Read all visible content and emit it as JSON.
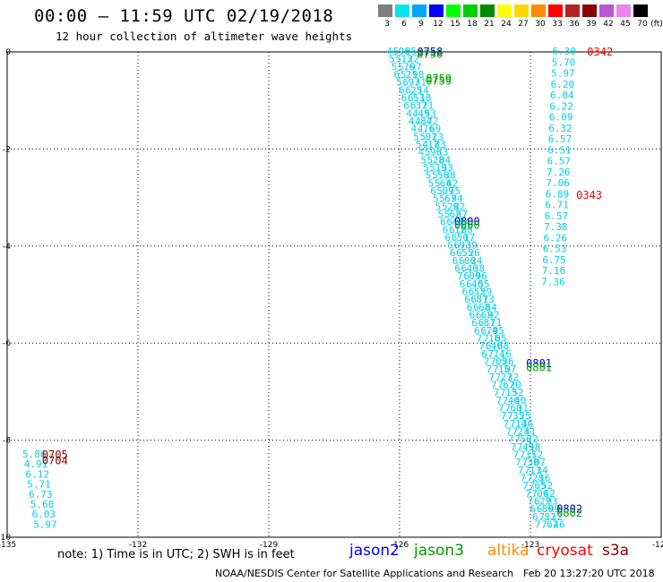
{
  "header": {
    "title": "00:00 – 11:59 UTC 02/19/2018",
    "subtitle": "12 hour collection of altimeter wave heights"
  },
  "color_scale": {
    "unit_label": "(ft)",
    "swatches": [
      {
        "label": "3",
        "color": "#7f7f7f"
      },
      {
        "label": "6",
        "color": "#00e5ee"
      },
      {
        "label": "9",
        "color": "#00a5ff"
      },
      {
        "label": "12",
        "color": "#0000ff"
      },
      {
        "label": "15",
        "color": "#00ff00"
      },
      {
        "label": "18",
        "color": "#00cd00"
      },
      {
        "label": "21",
        "color": "#008b00"
      },
      {
        "label": "24",
        "color": "#ffff00"
      },
      {
        "label": "27",
        "color": "#ffd700"
      },
      {
        "label": "30",
        "color": "#ff8c00"
      },
      {
        "label": "33",
        "color": "#ff0000"
      },
      {
        "label": "36",
        "color": "#b22222"
      },
      {
        "label": "39",
        "color": "#8b0000"
      },
      {
        "label": "42",
        "color": "#ba55d3"
      },
      {
        "label": "45",
        "color": "#ee82ee"
      },
      {
        "label": "70",
        "color": "#000000"
      }
    ]
  },
  "chart_data": {
    "type": "scatter",
    "xlim": [
      -135,
      -120
    ],
    "ylim": [
      -10,
      0
    ],
    "x_ticks": [
      "-135",
      "-132",
      "-129",
      "-126",
      "-123",
      "-120"
    ],
    "y_ticks": [
      "0",
      "-2",
      "-4",
      "-6",
      "-8",
      "-10"
    ],
    "grid": true,
    "swh_color": "#00cfe8",
    "time_labels": [
      {
        "text": "0758",
        "x": -125.6,
        "y": 0.0,
        "color": "#0000cc"
      },
      {
        "text": "0758",
        "x": -125.6,
        "y": -0.05,
        "color": "#00a000"
      },
      {
        "text": "0759",
        "x": -125.4,
        "y": -0.55,
        "color": "#00a000"
      },
      {
        "text": "0759",
        "x": -125.4,
        "y": -0.6,
        "color": "#00a000"
      },
      {
        "text": "0800",
        "x": -124.75,
        "y": -3.5,
        "color": "#0000cc"
      },
      {
        "text": "0800",
        "x": -124.75,
        "y": -3.57,
        "color": "#00a000"
      },
      {
        "text": "0801",
        "x": -123.1,
        "y": -6.42,
        "color": "#0000cc"
      },
      {
        "text": "0801",
        "x": -123.1,
        "y": -6.5,
        "color": "#00a000"
      },
      {
        "text": "0802",
        "x": -122.4,
        "y": -9.42,
        "color": "#0000cc"
      },
      {
        "text": "0802",
        "x": -122.4,
        "y": -9.5,
        "color": "#00a000"
      },
      {
        "text": "0342",
        "x": -121.7,
        "y": 0.0,
        "color": "#ff0000"
      },
      {
        "text": "0343",
        "x": -121.95,
        "y": -2.95,
        "color": "#ff0000"
      },
      {
        "text": "0705",
        "x": -134.2,
        "y": -8.3,
        "color": "#8b0000"
      },
      {
        "text": "0704",
        "x": -134.2,
        "y": -8.42,
        "color": "#8b0000"
      }
    ],
    "series": [
      {
        "satellite": "cryosat",
        "x_start": -122.5,
        "y_start": 0.0,
        "x_end": -122.75,
        "y_end": -4.75,
        "values": [
          "6.30",
          "5.70",
          "5.97",
          "6.20",
          "6.04",
          "6.22",
          "6.09",
          "6.32",
          "6.57",
          "6.51",
          "6.57",
          "7.26",
          "7.06",
          "6.89",
          "6.71",
          "6.57",
          "7.38",
          "6.26",
          "6.53",
          "6.75",
          "7.16",
          "7.36"
        ]
      },
      {
        "satellite": "jason2",
        "x_start": -126.3,
        "y_start": 0.0,
        "x_end": -122.9,
        "y_end": -9.75,
        "values": [
          "4.96",
          "5.13",
          "5.76",
          "6.21",
          "5.97",
          "6.25",
          "6.53",
          "6.37",
          "4.49",
          "4.84",
          "4.76",
          "5.01",
          "5.17",
          "4.96",
          "5.28",
          "5.19",
          "5.56",
          "5.64",
          "6.09",
          "5.67",
          "5.29",
          "5.62",
          "6.44",
          "6.12",
          "6.50",
          "5.93",
          "6.55",
          "6.06",
          "6.46",
          "7.09",
          "6.40",
          "6.52",
          "6.81",
          "6.68",
          "6.68",
          "6.81",
          "6.74",
          "7.16",
          "7.40",
          "6.74",
          "7.05",
          "7.15",
          "7.27",
          "7.67",
          "7.13",
          "7.46",
          "7.60",
          "7.35",
          "7.14",
          "7.23",
          "7.56",
          "7.49",
          "7.31",
          "7.30",
          "7.11",
          "7.28",
          "7.65",
          "7.06",
          "7.22",
          "6.80",
          "6.82",
          "7.62"
        ]
      },
      {
        "satellite": "jason3",
        "x_start": -126.15,
        "y_start": 0.0,
        "x_end": -122.75,
        "y_end": -9.75,
        "values": [
          "5.05",
          "5.22",
          "5.97",
          "5.98",
          "6.31",
          "6.14",
          "6.18",
          "6.21",
          "4.53",
          "4.72",
          "4.69",
          "5.23",
          "4.83",
          "5.33",
          "5.04",
          "5.33",
          "5.38",
          "5.62",
          "5.75",
          "5.94",
          "5.82",
          "5.67",
          "6.34",
          "6.00",
          "6.17",
          "6.39",
          "6.26",
          "6.24",
          "6.38",
          "6.96",
          "6.55",
          "6.59",
          "6.73",
          "6.64",
          "6.92",
          "6.71",
          "6.95",
          "7.05",
          "6.68",
          "7.16",
          "7.26",
          "7.07",
          "7.32",
          "7.20",
          "7.52",
          "7.40",
          "7.11",
          "7.25",
          "7.36",
          "7.41",
          "7.22",
          "7.18",
          "7.52",
          "7.07",
          "7.34",
          "7.16",
          "7.52",
          "7.42",
          "6.93",
          "6.99",
          "7.12",
          "7.46"
        ]
      },
      {
        "satellite": "sw",
        "x_start": -134.65,
        "y_start": -8.3,
        "x_end": -134.4,
        "y_end": -9.75,
        "values": [
          "5.86",
          "4.91",
          "6.12",
          "5.71",
          "6.73",
          "5.60",
          "6.03",
          "5.97"
        ]
      }
    ]
  },
  "footer": {
    "note": "note: 1) Time is in UTC; 2) SWH is in feet",
    "satellites": [
      {
        "name": "jason2",
        "color": "#0000ff"
      },
      {
        "name": "jason3",
        "color": "#009900"
      },
      {
        "name": "altika",
        "color": "#ff8c00"
      },
      {
        "name": "cryosat",
        "color": "#ff0000"
      },
      {
        "name": "s3a",
        "color": "#8b0000"
      }
    ],
    "credit": "NOAA/NESDIS Center for Satellite Applications and Research",
    "timestamp": "Feb 20 13:27:20 UTC 2018"
  }
}
